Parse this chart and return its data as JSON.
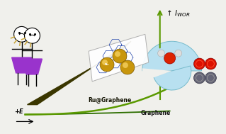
{
  "bg_color": "#f0f0ec",
  "fig_width": 3.19,
  "fig_height": 1.89,
  "dpi": 100,
  "graphene_curve_color": "#2d6e00",
  "ru_graphene_curve_color": "#5a9900",
  "graphene_label": "Graphene",
  "ru_graphene_label": "Ru@Graphene",
  "e_label": "+E",
  "wedge_color": "#3a3600",
  "pie_color": "#b8e0f0",
  "skirt_color": "#9933cc",
  "hair_color": "#ccaa44",
  "o2_red": "#cc1100",
  "h2_gray": "#555566",
  "green_arrow_color": "#5a9900"
}
